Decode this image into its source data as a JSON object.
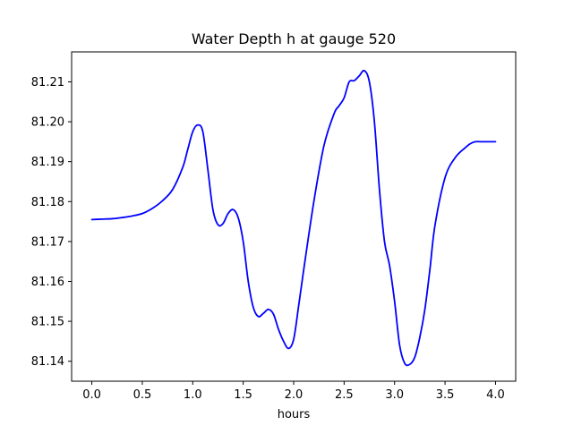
{
  "chart_data": {
    "type": "line",
    "title": "Water Depth h at gauge 520",
    "xlabel": "hours",
    "ylabel": "",
    "xlim": [
      -0.2,
      4.2
    ],
    "ylim": [
      81.135,
      81.2175
    ],
    "xticks": [
      0.0,
      0.5,
      1.0,
      1.5,
      2.0,
      2.5,
      3.0,
      3.5,
      4.0
    ],
    "xtick_labels": [
      "0.0",
      "0.5",
      "1.0",
      "1.5",
      "2.0",
      "2.5",
      "3.0",
      "3.5",
      "4.0"
    ],
    "yticks": [
      81.14,
      81.15,
      81.16,
      81.17,
      81.18,
      81.19,
      81.2,
      81.21
    ],
    "ytick_labels": [
      "81.14",
      "81.15",
      "81.16",
      "81.17",
      "81.18",
      "81.19",
      "81.20",
      "81.21"
    ],
    "grid": false,
    "series": [
      {
        "color": "#0000ff",
        "x": [
          0.0,
          0.1,
          0.2,
          0.3,
          0.4,
          0.5,
          0.6,
          0.7,
          0.8,
          0.9,
          0.95,
          1.0,
          1.05,
          1.1,
          1.15,
          1.2,
          1.25,
          1.3,
          1.35,
          1.4,
          1.45,
          1.5,
          1.55,
          1.6,
          1.65,
          1.7,
          1.75,
          1.8,
          1.85,
          1.9,
          1.95,
          2.0,
          2.05,
          2.1,
          2.2,
          2.3,
          2.4,
          2.45,
          2.5,
          2.55,
          2.6,
          2.65,
          2.7,
          2.75,
          2.8,
          2.85,
          2.9,
          2.95,
          3.0,
          3.05,
          3.1,
          3.15,
          3.2,
          3.25,
          3.3,
          3.35,
          3.4,
          3.5,
          3.6,
          3.7,
          3.75,
          3.8,
          3.85,
          3.9,
          3.95,
          4.0
        ],
        "y": [
          81.1755,
          81.1756,
          81.1757,
          81.176,
          81.1764,
          81.177,
          81.1783,
          81.1802,
          81.183,
          81.1885,
          81.193,
          81.1975,
          81.1992,
          81.1975,
          81.188,
          81.178,
          81.1742,
          81.1745,
          81.177,
          81.178,
          81.176,
          81.17,
          81.16,
          81.1535,
          81.1512,
          81.152,
          81.153,
          81.1518,
          81.148,
          81.145,
          81.1432,
          81.1455,
          81.154,
          81.163,
          81.18,
          81.194,
          81.202,
          81.204,
          81.206,
          81.21,
          81.2103,
          81.2115,
          81.2128,
          81.21,
          81.2,
          81.183,
          81.17,
          81.164,
          81.155,
          81.144,
          81.1395,
          81.1392,
          81.141,
          81.146,
          81.153,
          81.163,
          81.174,
          81.186,
          81.191,
          81.1935,
          81.1945,
          81.195,
          81.195,
          81.195,
          81.195,
          81.195
        ]
      }
    ]
  }
}
